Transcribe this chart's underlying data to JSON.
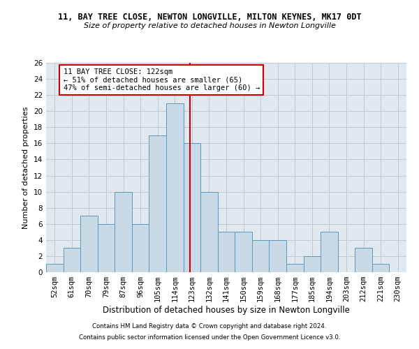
{
  "title1": "11, BAY TREE CLOSE, NEWTON LONGVILLE, MILTON KEYNES, MK17 0DT",
  "title2": "Size of property relative to detached houses in Newton Longville",
  "xlabel": "Distribution of detached houses by size in Newton Longville",
  "ylabel": "Number of detached properties",
  "categories": [
    "52sqm",
    "61sqm",
    "70sqm",
    "79sqm",
    "87sqm",
    "96sqm",
    "105sqm",
    "114sqm",
    "123sqm",
    "132sqm",
    "141sqm",
    "150sqm",
    "159sqm",
    "168sqm",
    "177sqm",
    "185sqm",
    "194sqm",
    "203sqm",
    "212sqm",
    "221sqm",
    "230sqm"
  ],
  "values": [
    1,
    3,
    7,
    6,
    10,
    6,
    17,
    21,
    16,
    10,
    5,
    5,
    4,
    4,
    1,
    2,
    5,
    0,
    3,
    1,
    0
  ],
  "bar_color": "#c8d9e8",
  "bar_edge_color": "#6096b8",
  "grid_color": "#c0c8d0",
  "background_color": "#e0e8f0",
  "vline_x_index": 7.88,
  "vline_color": "#cc0000",
  "annotation_text": "11 BAY TREE CLOSE: 122sqm\n← 51% of detached houses are smaller (65)\n47% of semi-detached houses are larger (60) →",
  "annotation_box_color": "#ffffff",
  "annotation_box_edge": "#cc0000",
  "footer1": "Contains HM Land Registry data © Crown copyright and database right 2024.",
  "footer2": "Contains public sector information licensed under the Open Government Licence v3.0.",
  "ylim": [
    0,
    26
  ],
  "yticks": [
    0,
    2,
    4,
    6,
    8,
    10,
    12,
    14,
    16,
    18,
    20,
    22,
    24,
    26
  ],
  "title1_fontsize": 8.5,
  "title2_fontsize": 8.0,
  "xlabel_fontsize": 8.5,
  "ylabel_fontsize": 8.0,
  "tick_fontsize": 7.5,
  "annotation_fontsize": 7.5,
  "footer_fontsize": 6.2
}
